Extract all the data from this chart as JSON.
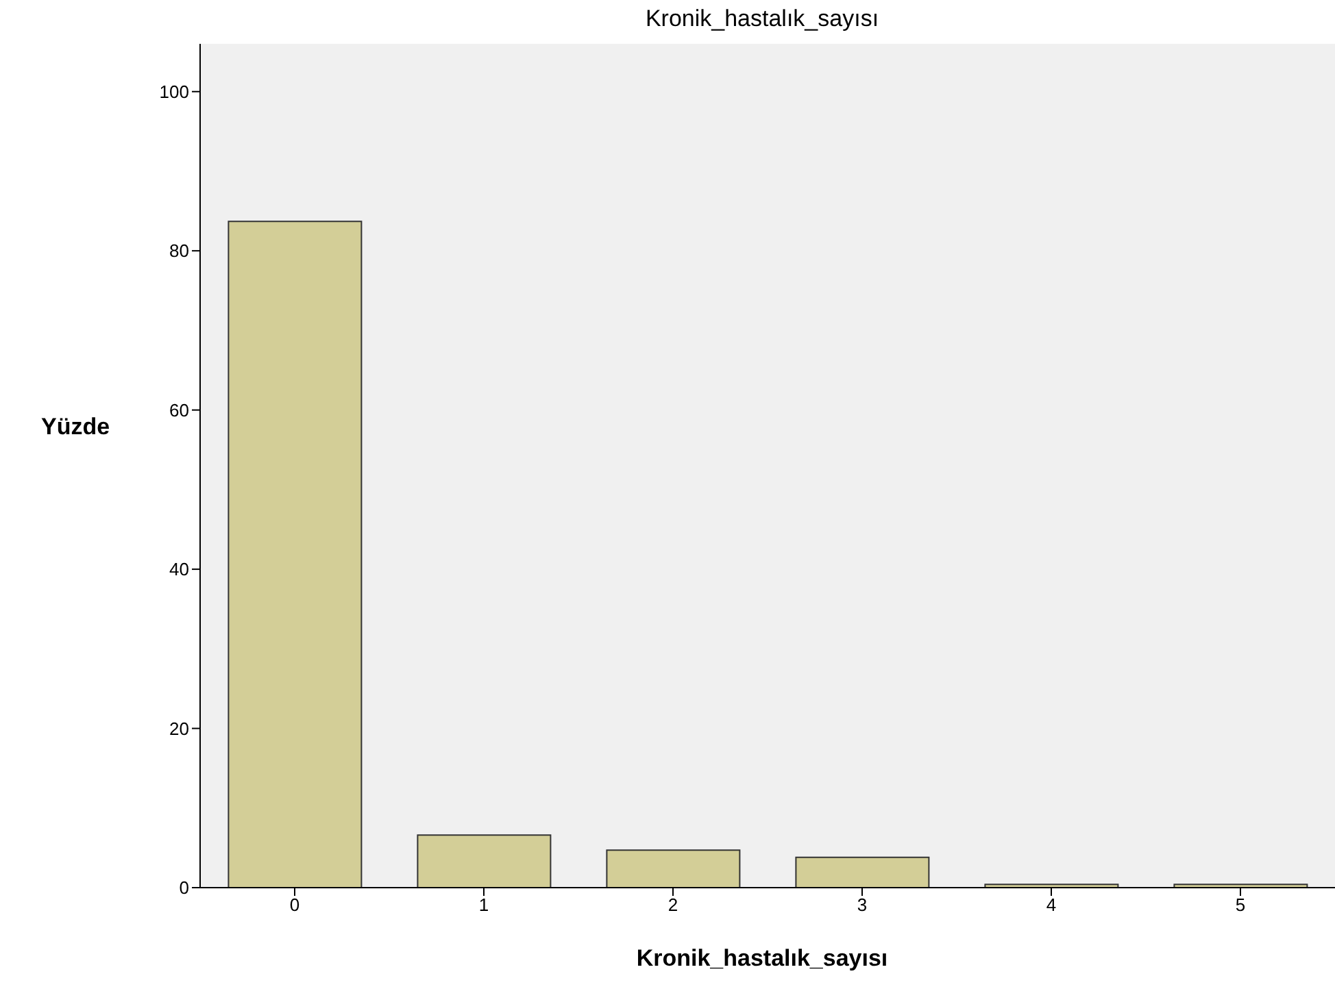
{
  "chart_data": {
    "type": "bar",
    "title": "Kronik_hastalık_sayısı",
    "xlabel": "Kronik_hastalık_sayısı",
    "ylabel": "Yüzde",
    "categories": [
      "0",
      "1",
      "2",
      "3",
      "4",
      "5"
    ],
    "values": [
      83.7,
      6.6,
      4.7,
      3.8,
      0.4,
      0.4
    ],
    "color": "#d3ce97",
    "ylim": [
      0,
      106
    ],
    "yticks": [
      0,
      20,
      40,
      60,
      80,
      100
    ],
    "grid": false
  }
}
